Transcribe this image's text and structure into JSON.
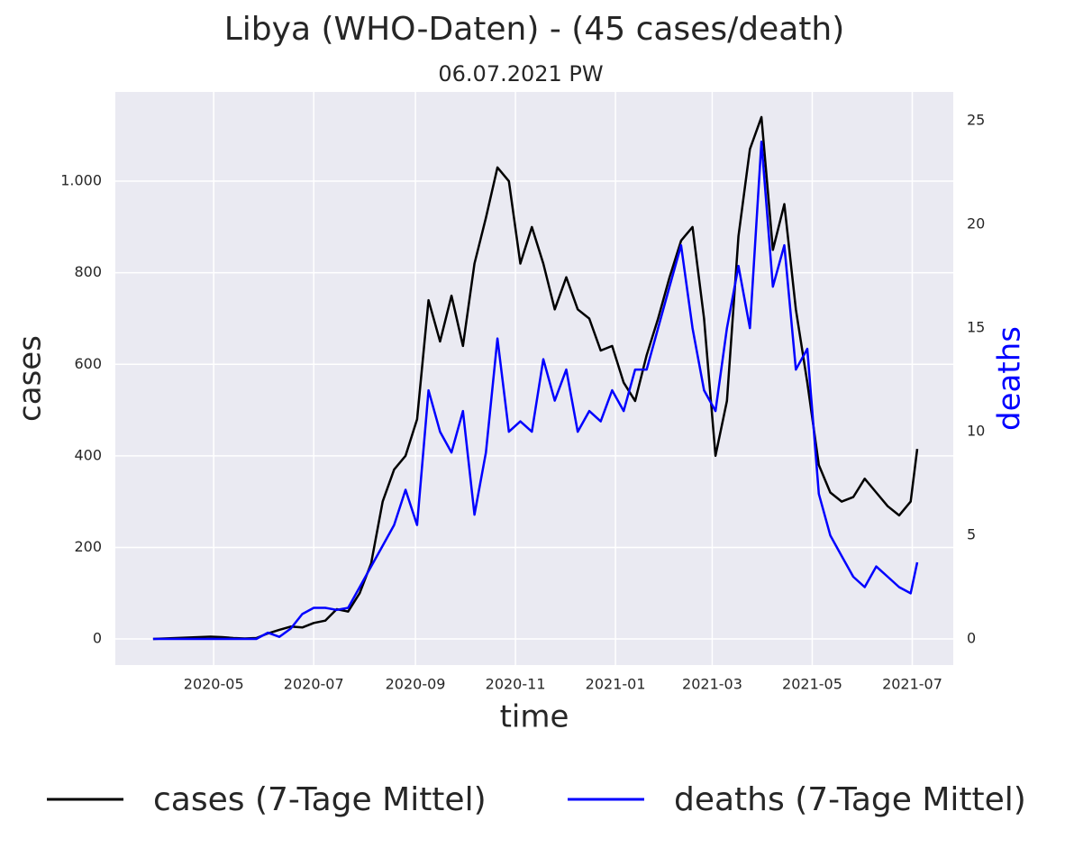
{
  "chart_data": {
    "type": "line",
    "title": "Libya (WHO-Daten) - (45 cases/death)",
    "subtitle": "06.07.2021 PW",
    "x_label": "time",
    "y_label": "cases",
    "y2_label": "deaths",
    "x": [
      "2020-03-25",
      "2020-04-01",
      "2020-04-08",
      "2020-04-15",
      "2020-04-22",
      "2020-04-29",
      "2020-05-06",
      "2020-05-13",
      "2020-05-20",
      "2020-05-27",
      "2020-06-03",
      "2020-06-10",
      "2020-06-17",
      "2020-06-24",
      "2020-07-01",
      "2020-07-08",
      "2020-07-15",
      "2020-07-22",
      "2020-07-29",
      "2020-08-05",
      "2020-08-12",
      "2020-08-19",
      "2020-08-26",
      "2020-09-02",
      "2020-09-09",
      "2020-09-16",
      "2020-09-23",
      "2020-09-30",
      "2020-10-07",
      "2020-10-14",
      "2020-10-21",
      "2020-10-28",
      "2020-11-04",
      "2020-11-11",
      "2020-11-18",
      "2020-11-25",
      "2020-12-02",
      "2020-12-09",
      "2020-12-16",
      "2020-12-23",
      "2020-12-30",
      "2021-01-06",
      "2021-01-13",
      "2021-01-20",
      "2021-01-27",
      "2021-02-03",
      "2021-02-10",
      "2021-02-17",
      "2021-02-24",
      "2021-03-03",
      "2021-03-10",
      "2021-03-17",
      "2021-03-24",
      "2021-03-31",
      "2021-04-07",
      "2021-04-14",
      "2021-04-21",
      "2021-04-28",
      "2021-05-05",
      "2021-05-12",
      "2021-05-19",
      "2021-05-26",
      "2021-06-02",
      "2021-06-09",
      "2021-06-16",
      "2021-06-23",
      "2021-06-30",
      "2021-07-04"
    ],
    "series": [
      {
        "name": "cases (7-Tage Mittel)",
        "color": "#000000",
        "axis": "y",
        "values": [
          0,
          1,
          2,
          3,
          4,
          5,
          4,
          2,
          1,
          2,
          12,
          20,
          27,
          25,
          35,
          40,
          65,
          60,
          100,
          165,
          300,
          370,
          400,
          480,
          740,
          650,
          750,
          640,
          820,
          920,
          1030,
          1000,
          820,
          900,
          820,
          720,
          790,
          720,
          700,
          630,
          640,
          560,
          520,
          620,
          700,
          790,
          870,
          900,
          700,
          400,
          520,
          880,
          1070,
          1140,
          850,
          950,
          720,
          560,
          380,
          320,
          300,
          310,
          350,
          320,
          290,
          270,
          300,
          415
        ]
      },
      {
        "name": "deaths (7-Tage Mittel)",
        "color": "#0000ff",
        "axis": "y2",
        "values": [
          0,
          0,
          0,
          0,
          0,
          0,
          0,
          0,
          0,
          0,
          0.3,
          0.1,
          0.5,
          1.2,
          1.5,
          1.5,
          1.4,
          1.5,
          2.5,
          3.5,
          4.5,
          5.5,
          7.2,
          5.5,
          12,
          10,
          9,
          11,
          6,
          9,
          14.5,
          10,
          10.5,
          10,
          13.5,
          11.5,
          13,
          10,
          11,
          10.5,
          12,
          11,
          13,
          13,
          15,
          17,
          19,
          15,
          12,
          11,
          15,
          18,
          15,
          24,
          17,
          19,
          13,
          14,
          7,
          5,
          4,
          3,
          2.5,
          3.5,
          3,
          2.5,
          2.2,
          3.7
        ]
      }
    ],
    "xlim": [
      "2020-03-02",
      "2021-07-26"
    ],
    "xticks": [
      "2020-05",
      "2020-07",
      "2020-09",
      "2020-11",
      "2021-01",
      "2021-03",
      "2021-05",
      "2021-07"
    ],
    "ylim": [
      -57,
      1195
    ],
    "yticks": [
      0,
      200,
      400,
      600,
      800,
      {
        "value": 1000,
        "label": "1.000"
      }
    ],
    "y2lim": [
      -1.26,
      26.4
    ],
    "y2ticks": [
      0,
      5,
      10,
      15,
      20,
      25
    ],
    "grid": true,
    "legend": "bottom"
  }
}
